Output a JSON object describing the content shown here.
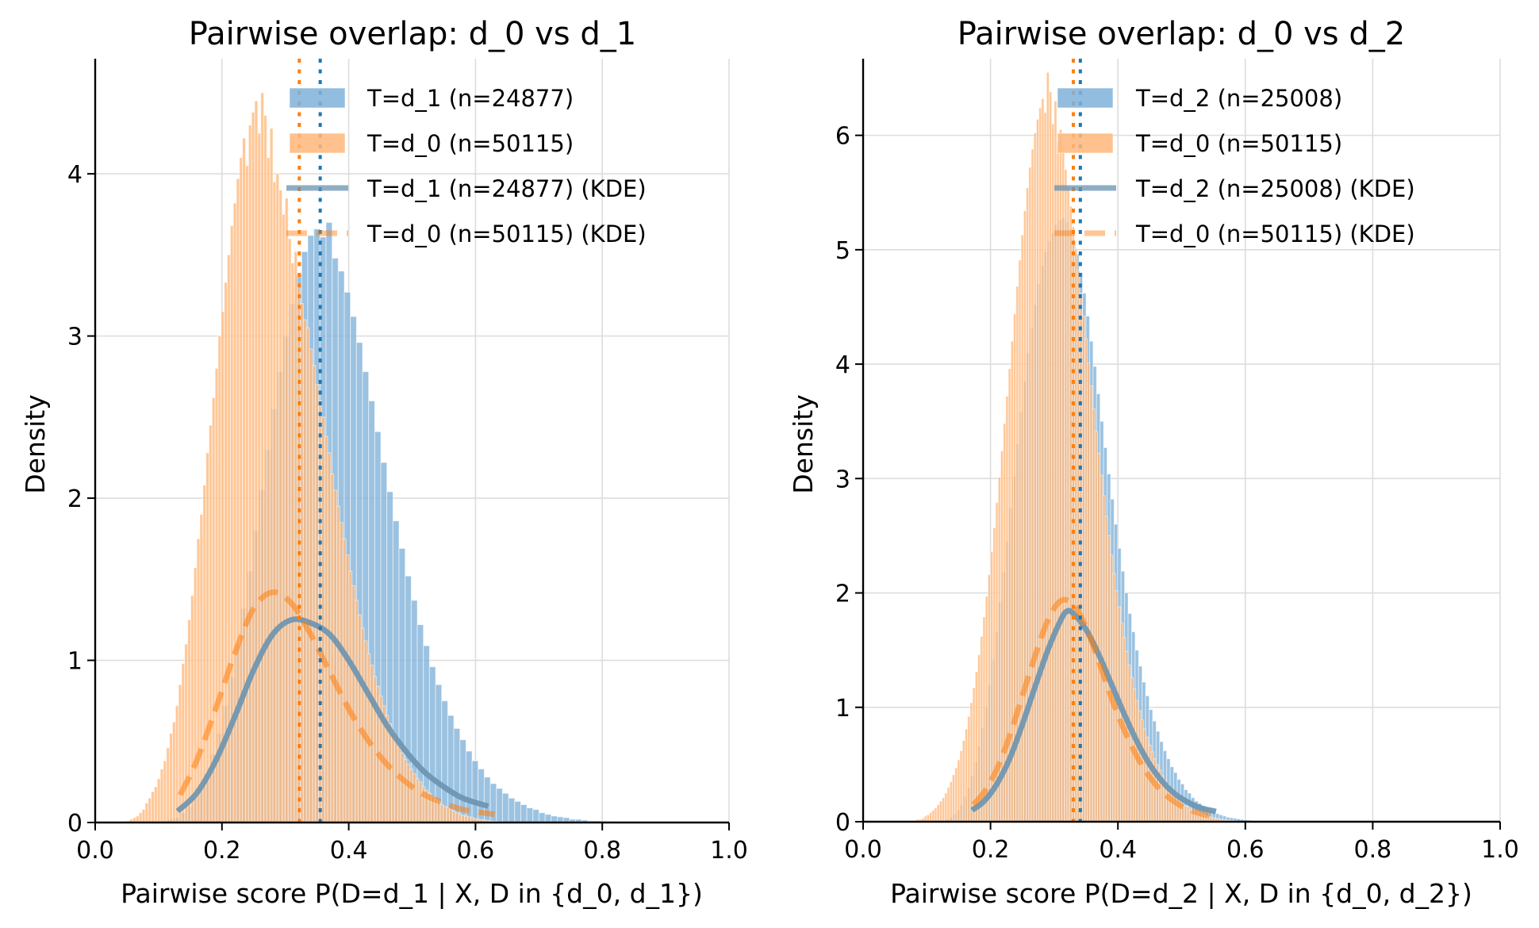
{
  "figure": {
    "background": "#ffffff",
    "colors": {
      "blue": "#1f77b4",
      "orange": "#ff7f0e",
      "blue_fill": "#7fb1d8",
      "orange_fill": "#ffb77a",
      "kde_blue": "#6a93b0",
      "grid": "#dddddd"
    }
  },
  "chart_data": [
    {
      "type": "bar",
      "subtype": "histogram-with-kde",
      "title": "Pairwise overlap: d_0 vs d_1",
      "xlabel": "Pairwise score P(D=d_1 | X, D in {d_0, d_1})",
      "ylabel": "Density",
      "xlim": [
        0.0,
        1.0
      ],
      "ylim": [
        0,
        4.71
      ],
      "xticks": [
        0.0,
        0.2,
        0.4,
        0.6,
        0.8,
        1.0
      ],
      "xtick_labels": [
        "0.0",
        "0.2",
        "0.4",
        "0.6",
        "0.8",
        "1.0"
      ],
      "yticks": [
        0,
        1,
        2,
        3,
        4
      ],
      "ytick_labels": [
        "0",
        "1",
        "2",
        "3",
        "4"
      ],
      "grid": true,
      "legend_position": "top-center",
      "legend": [
        {
          "label": "T=d_1 (n=24877)",
          "kind": "patch",
          "color": "blue"
        },
        {
          "label": "T=d_0 (n=50115)",
          "kind": "patch",
          "color": "orange"
        },
        {
          "label": "T=d_1 (n=24877) (KDE)",
          "kind": "line",
          "color": "blue"
        },
        {
          "label": "T=d_0 (n=50115) (KDE)",
          "kind": "dashed",
          "color": "orange"
        }
      ],
      "series": [
        {
          "name": "T=d_1 (n=24877)",
          "kind": "histogram",
          "color": "blue",
          "bin_start": 0.105,
          "bin_width": 0.0096,
          "values": [
            0.01,
            0.02,
            0.03,
            0.06,
            0.1,
            0.15,
            0.22,
            0.3,
            0.42,
            0.55,
            0.72,
            0.9,
            1.1,
            1.32,
            1.55,
            1.8,
            2.05,
            2.3,
            2.55,
            2.78,
            3.0,
            3.2,
            3.38,
            3.52,
            3.62,
            3.66,
            3.61,
            3.7,
            3.48,
            3.4,
            3.27,
            3.12,
            2.96,
            2.78,
            2.6,
            2.41,
            2.22,
            2.04,
            1.86,
            1.69,
            1.52,
            1.37,
            1.22,
            1.09,
            0.96,
            0.85,
            0.75,
            0.66,
            0.58,
            0.51,
            0.44,
            0.38,
            0.33,
            0.28,
            0.24,
            0.21,
            0.18,
            0.15,
            0.13,
            0.11,
            0.09,
            0.08,
            0.06,
            0.05,
            0.04,
            0.035,
            0.03,
            0.02,
            0.02,
            0.015,
            0.01,
            0.01,
            0.008,
            0.006,
            0.005,
            0.004,
            0.003
          ]
        },
        {
          "name": "T=d_0 (n=50115)",
          "kind": "histogram",
          "color": "orange",
          "bin_start": 0.05,
          "bin_width": 0.0048,
          "values": [
            0.01,
            0.02,
            0.03,
            0.04,
            0.06,
            0.08,
            0.12,
            0.15,
            0.19,
            0.22,
            0.27,
            0.33,
            0.38,
            0.46,
            0.55,
            0.62,
            0.72,
            0.85,
            0.98,
            1.1,
            1.25,
            1.4,
            1.57,
            1.75,
            1.9,
            2.08,
            2.28,
            2.45,
            2.62,
            2.8,
            3.0,
            3.15,
            3.33,
            3.5,
            3.68,
            3.82,
            3.97,
            4.1,
            4.22,
            4.05,
            4.3,
            4.38,
            4.45,
            4.25,
            4.5,
            4.36,
            4.1,
            4.28,
            3.95,
            4.0,
            3.9,
            3.75,
            3.85,
            3.6,
            3.45,
            3.52,
            3.3,
            3.2,
            3.1,
            3.05,
            2.92,
            2.82,
            2.7,
            2.6,
            2.5,
            2.38,
            2.28,
            2.15,
            2.05,
            1.95,
            1.85,
            1.75,
            1.65,
            1.55,
            1.46,
            1.37,
            1.28,
            1.2,
            1.12,
            1.04,
            0.97,
            0.9,
            0.84,
            0.78,
            0.72,
            0.66,
            0.61,
            0.56,
            0.52,
            0.47,
            0.43,
            0.39,
            0.36,
            0.33,
            0.3,
            0.27,
            0.25,
            0.22,
            0.2,
            0.18,
            0.16,
            0.14,
            0.13,
            0.11,
            0.1,
            0.09,
            0.08,
            0.07,
            0.06,
            0.05,
            0.045,
            0.04,
            0.035,
            0.03,
            0.025,
            0.02,
            0.018,
            0.015,
            0.012,
            0.01,
            0.008,
            0.006,
            0.005,
            0.004,
            0.003,
            0.002
          ]
        },
        {
          "name": "T=d_1 (n=24877) (KDE)",
          "kind": "kde",
          "color": "blue",
          "x": [
            0.13,
            0.16,
            0.19,
            0.22,
            0.25,
            0.28,
            0.31,
            0.34,
            0.37,
            0.4,
            0.43,
            0.46,
            0.49,
            0.52,
            0.55,
            0.58,
            0.62
          ],
          "y": [
            0.07,
            0.18,
            0.38,
            0.65,
            0.94,
            1.16,
            1.25,
            1.23,
            1.16,
            1.0,
            0.8,
            0.6,
            0.44,
            0.31,
            0.22,
            0.15,
            0.1
          ]
        },
        {
          "name": "T=d_0 (n=50115) (KDE)",
          "kind": "kde",
          "color": "orange",
          "x": [
            0.134,
            0.16,
            0.19,
            0.22,
            0.25,
            0.28,
            0.31,
            0.34,
            0.37,
            0.4,
            0.43,
            0.46,
            0.49,
            0.52,
            0.55,
            0.58,
            0.63
          ],
          "y": [
            0.17,
            0.38,
            0.7,
            1.04,
            1.32,
            1.42,
            1.35,
            1.16,
            0.93,
            0.7,
            0.51,
            0.36,
            0.25,
            0.17,
            0.12,
            0.08,
            0.05
          ]
        }
      ],
      "vlines": [
        {
          "x": 0.322,
          "color": "orange",
          "style": "dotted"
        },
        {
          "x": 0.355,
          "color": "blue",
          "style": "dotted"
        }
      ]
    },
    {
      "type": "bar",
      "subtype": "histogram-with-kde",
      "title": "Pairwise overlap: d_0 vs d_2",
      "xlabel": "Pairwise score P(D=d_2 | X, D in {d_0, d_2})",
      "ylabel": "Density",
      "xlim": [
        0.0,
        1.0
      ],
      "ylim": [
        0,
        6.67
      ],
      "xticks": [
        0.0,
        0.2,
        0.4,
        0.6,
        0.8,
        1.0
      ],
      "xtick_labels": [
        "0.0",
        "0.2",
        "0.4",
        "0.6",
        "0.8",
        "1.0"
      ],
      "yticks": [
        0,
        1,
        2,
        3,
        4,
        5,
        6
      ],
      "ytick_labels": [
        "0",
        "1",
        "2",
        "3",
        "4",
        "5",
        "6"
      ],
      "grid": true,
      "legend_position": "top-center",
      "legend": [
        {
          "label": "T=d_2 (n=25008)",
          "kind": "patch",
          "color": "blue"
        },
        {
          "label": "T=d_0 (n=50115)",
          "kind": "patch",
          "color": "orange"
        },
        {
          "label": "T=d_2 (n=25008) (KDE)",
          "kind": "line",
          "color": "blue"
        },
        {
          "label": "T=d_0 (n=50115) (KDE)",
          "kind": "dashed",
          "color": "orange"
        }
      ],
      "series": [
        {
          "name": "T=d_2 (n=25008)",
          "kind": "histogram",
          "color": "blue",
          "bin_start": 0.13,
          "bin_width": 0.0055,
          "values": [
            0.02,
            0.04,
            0.07,
            0.1,
            0.15,
            0.22,
            0.3,
            0.4,
            0.52,
            0.66,
            0.82,
            1.0,
            1.2,
            1.42,
            1.66,
            1.92,
            2.18,
            2.45,
            2.74,
            3.02,
            3.3,
            3.58,
            3.85,
            4.1,
            4.32,
            4.52,
            4.7,
            4.86,
            4.98,
            5.08,
            5.15,
            5.22,
            5.26,
            5.28,
            5.24,
            5.18,
            5.08,
            4.96,
            4.8,
            4.62,
            4.42,
            4.2,
            3.98,
            3.74,
            3.5,
            3.27,
            3.04,
            2.82,
            2.6,
            2.39,
            2.19,
            2.0,
            1.82,
            1.66,
            1.5,
            1.36,
            1.22,
            1.1,
            0.98,
            0.88,
            0.79,
            0.7,
            0.62,
            0.55,
            0.48,
            0.43,
            0.37,
            0.33,
            0.28,
            0.25,
            0.21,
            0.18,
            0.16,
            0.14,
            0.12,
            0.1,
            0.085,
            0.07,
            0.06,
            0.05,
            0.04,
            0.035,
            0.03,
            0.025,
            0.02,
            0.016,
            0.013,
            0.01,
            0.008,
            0.006,
            0.005,
            0.004,
            0.003,
            0.002,
            0.002,
            0.001,
            0.001
          ]
        },
        {
          "name": "T=d_0 (n=50115)",
          "kind": "histogram",
          "color": "orange",
          "bin_start": 0.08,
          "bin_width": 0.004,
          "values": [
            0.01,
            0.02,
            0.02,
            0.03,
            0.05,
            0.06,
            0.08,
            0.1,
            0.12,
            0.15,
            0.18,
            0.21,
            0.25,
            0.3,
            0.35,
            0.41,
            0.47,
            0.54,
            0.62,
            0.71,
            0.81,
            0.92,
            1.04,
            1.17,
            1.31,
            1.46,
            1.62,
            1.79,
            1.97,
            2.16,
            2.36,
            2.57,
            2.79,
            3.01,
            3.24,
            3.48,
            3.72,
            3.96,
            4.2,
            4.44,
            4.68,
            4.91,
            5.13,
            5.34,
            5.54,
            5.72,
            5.88,
            6.02,
            6.14,
            6.24,
            6.32,
            6.2,
            6.55,
            6.38,
            6.1,
            6.3,
            5.95,
            6.05,
            5.85,
            5.7,
            5.55,
            5.38,
            5.2,
            5.01,
            4.82,
            4.62,
            4.42,
            4.22,
            4.01,
            3.81,
            3.61,
            3.41,
            3.22,
            3.03,
            2.85,
            2.67,
            2.5,
            2.33,
            2.17,
            2.02,
            1.88,
            1.74,
            1.61,
            1.49,
            1.37,
            1.26,
            1.16,
            1.06,
            0.97,
            0.89,
            0.81,
            0.74,
            0.67,
            0.61,
            0.55,
            0.5,
            0.45,
            0.4,
            0.36,
            0.33,
            0.29,
            0.26,
            0.23,
            0.21,
            0.18,
            0.16,
            0.14,
            0.13,
            0.11,
            0.1,
            0.09,
            0.08,
            0.07,
            0.06,
            0.05,
            0.045,
            0.04,
            0.035,
            0.03,
            0.025,
            0.02,
            0.018,
            0.015,
            0.012,
            0.01,
            0.008,
            0.006,
            0.005,
            0.004,
            0.003,
            0.003,
            0.002,
            0.002,
            0.001,
            0.001
          ]
        },
        {
          "name": "T=d_2 (n=25008) (KDE)",
          "kind": "kde",
          "color": "blue",
          "x": [
            0.171,
            0.19,
            0.21,
            0.23,
            0.25,
            0.27,
            0.29,
            0.31,
            0.32,
            0.33,
            0.35,
            0.37,
            0.39,
            0.41,
            0.43,
            0.45,
            0.47,
            0.49,
            0.51,
            0.53,
            0.554
          ],
          "y": [
            0.1,
            0.18,
            0.33,
            0.55,
            0.85,
            1.18,
            1.5,
            1.76,
            1.84,
            1.82,
            1.68,
            1.46,
            1.2,
            0.94,
            0.7,
            0.5,
            0.35,
            0.24,
            0.17,
            0.12,
            0.09
          ]
        },
        {
          "name": "T=d_0 (n=50115) (KDE)",
          "kind": "kde",
          "color": "orange",
          "x": [
            0.173,
            0.19,
            0.21,
            0.23,
            0.25,
            0.27,
            0.29,
            0.31,
            0.33,
            0.35,
            0.37,
            0.39,
            0.41,
            0.43,
            0.45,
            0.47,
            0.49,
            0.51,
            0.53,
            0.544
          ],
          "y": [
            0.15,
            0.26,
            0.46,
            0.75,
            1.1,
            1.45,
            1.76,
            1.93,
            1.9,
            1.7,
            1.4,
            1.08,
            0.8,
            0.57,
            0.39,
            0.26,
            0.17,
            0.11,
            0.07,
            0.055
          ]
        }
      ],
      "vlines": [
        {
          "x": 0.33,
          "color": "orange",
          "style": "dotted"
        },
        {
          "x": 0.341,
          "color": "blue",
          "style": "dotted"
        }
      ]
    }
  ]
}
